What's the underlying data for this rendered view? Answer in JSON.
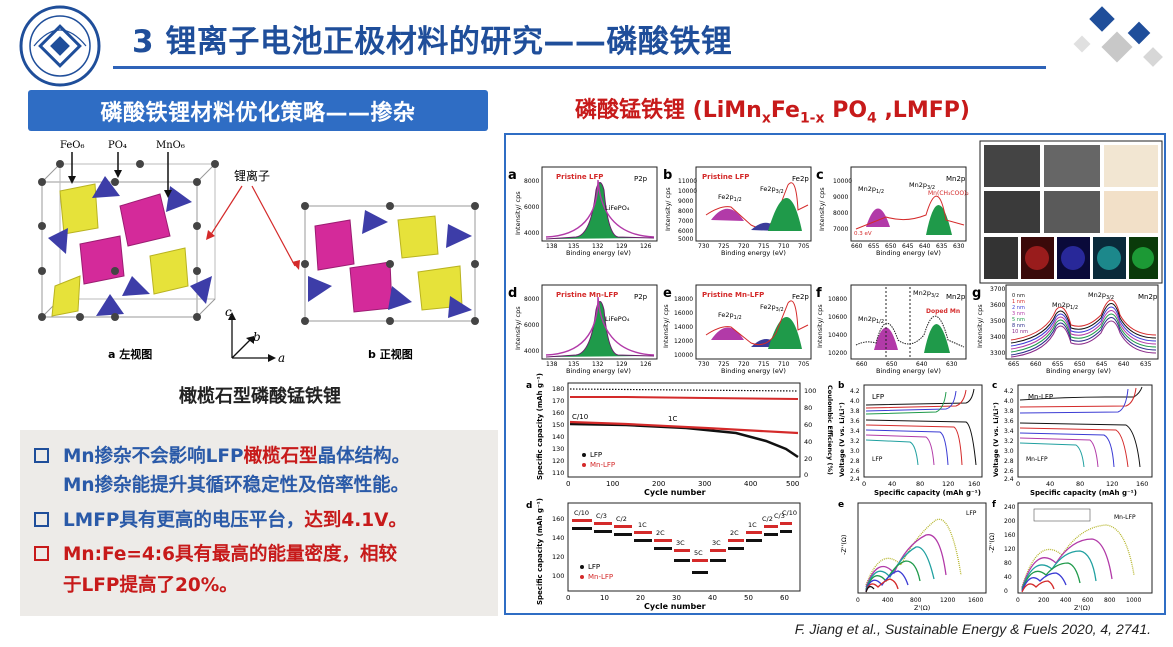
{
  "header": {
    "title": "3 锂离子电池正极材料的研究——磷酸铁锂",
    "logo_text": "CENTRAL SOUTH UNIVERSITY"
  },
  "left": {
    "banner": "磷酸铁锂材料优化策略——掺杂",
    "crystal": {
      "labels": [
        "FeO₆",
        "PO₄",
        "MnO₆"
      ],
      "li_label": "锂离子",
      "view_a": "a 左视图",
      "view_b": "b 正视图",
      "axes": [
        "c",
        "b",
        "a"
      ]
    },
    "caption": "橄榄石型磷酸锰铁锂",
    "bullets": [
      {
        "prefix": "Mn掺杂不会影响LFP",
        "highlight": "橄榄石型",
        "suffix": "晶体结构。"
      },
      {
        "text": "Mn掺杂能提升其循环稳定性及倍率性能。"
      },
      {
        "prefix": "LMFP具有更高的电压平台，",
        "suffix": "达到4.1V。"
      },
      {
        "text": "Mn:Fe=4:6具有最高的能量密度，相较"
      },
      {
        "text": "于LFP提高了20%。"
      }
    ]
  },
  "right": {
    "title_pre": "磷酸锰铁锂 (LiMn",
    "title_x": "x",
    "title_mid": "Fe",
    "title_1x": "1-x",
    "title_post": " PO",
    "title_4": "4",
    "title_end": " ,LMFP)",
    "panels_top": [
      {
        "letter": "a",
        "label": "Pristine LFP",
        "right": "P2p",
        "peak": "LiFePO₄",
        "xlabel": "Binding energy (eV)",
        "ylabel": "Intensity/ cps",
        "xticks": [
          "138",
          "135",
          "132",
          "129",
          "126"
        ],
        "yticks": [
          "8000",
          "6000",
          "4000"
        ]
      },
      {
        "letter": "b",
        "label": "Pristine LFP",
        "right": "Fe2p",
        "peak": "",
        "xlabel": "Binding energy (eV)",
        "ylabel": "Intensity/ cps",
        "xticks": [
          "730",
          "725",
          "720",
          "715",
          "710",
          "705"
        ],
        "yticks": [
          "11000",
          "10000",
          "9000",
          "8000",
          "7000",
          "6000",
          "5000"
        ]
      },
      {
        "letter": "c",
        "label": "",
        "right": "Mn2p",
        "peak": "Mn(CH₃COO)₂",
        "xlabel": "Binding energy (eV)",
        "ylabel": "Intensity/ cps",
        "xticks": [
          "660",
          "655",
          "650",
          "645",
          "640",
          "635",
          "630"
        ],
        "yticks": [
          "10000",
          "9000",
          "8000",
          "7000"
        ]
      },
      {
        "letter": "d",
        "label": "Pristine Mn-LFP",
        "right": "P2p",
        "peak": "LiFePO₄",
        "xlabel": "Binding energy (eV)",
        "ylabel": "Intensity/ cps",
        "xticks": [
          "138",
          "135",
          "132",
          "129",
          "126"
        ],
        "yticks": [
          "8000",
          "6000",
          "4000"
        ]
      },
      {
        "letter": "e",
        "label": "Pristine Mn-LFP",
        "right": "Fe2p",
        "peak": "",
        "xlabel": "Binding energy (eV)",
        "ylabel": "Intensity/ cps",
        "xticks": [
          "730",
          "725",
          "720",
          "715",
          "710",
          "705"
        ],
        "yticks": [
          "18000",
          "16000",
          "14000",
          "12000",
          "10000"
        ]
      },
      {
        "letter": "f",
        "label": "",
        "right": "Mn2p",
        "peak": "Doped Mn",
        "xlabel": "Binding energy (eV)",
        "ylabel": "Intensity/ cps",
        "xticks": [
          "660",
          "650",
          "640",
          "630"
        ],
        "yticks": [
          "10800",
          "10600",
          "10400",
          "10200"
        ]
      },
      {
        "letter": "g",
        "label": "",
        "right": "Mn2p",
        "peak": "",
        "xlabel": "Binding energy (eV)",
        "ylabel": "Intensity/ cps",
        "xticks": [
          "665",
          "660",
          "655",
          "650",
          "645",
          "640",
          "635"
        ],
        "yticks": [
          "3700",
          "3600",
          "3500",
          "3400",
          "3300"
        ]
      }
    ],
    "legend_g": [
      "0 nm",
      "1 nm",
      "2 nm",
      "3 nm",
      "5 nm",
      "8 nm",
      "10 nm"
    ],
    "cycle": {
      "letter": "a",
      "xlabel": "Cycle number",
      "ylabel": "Specific capacity (mAh g⁻¹)",
      "ylabel2": "Coulombic Efficiency (%)",
      "xticks": [
        "0",
        "100",
        "200",
        "300",
        "400",
        "500"
      ],
      "yticks": [
        "180",
        "170",
        "160",
        "150",
        "140",
        "130",
        "120",
        "110"
      ],
      "y2ticks": [
        "100",
        "80",
        "60",
        "40",
        "20",
        "0"
      ],
      "tag1": "C/10",
      "tag2": "1C",
      "legend": [
        "LFP",
        "Mn-LFP"
      ]
    },
    "rate": {
      "letter": "d",
      "xlabel": "Cycle number",
      "ylabel": "Specific capacity (mAh g⁻¹)",
      "xticks": [
        "0",
        "10",
        "20",
        "30",
        "40",
        "50",
        "60"
      ],
      "yticks": [
        "160",
        "140",
        "120",
        "100"
      ],
      "tags": [
        "C/10",
        "C/3",
        "C/2",
        "1C",
        "2C",
        "3C",
        "5C",
        "3C",
        "2C",
        "1C",
        "C/2",
        "C/3",
        "C/10"
      ],
      "legend": [
        "LFP",
        "Mn-LFP"
      ]
    },
    "voltage_b": {
      "letter": "b",
      "label": "LFP",
      "inner": "LFP",
      "xlabel": "Specific capacity (mAh g⁻¹)",
      "ylabel": "Voltage (V vs. Li/Li⁺)",
      "xticks": [
        "0",
        "40",
        "80",
        "120",
        "160"
      ],
      "yticks": [
        "4.2",
        "4.0",
        "3.8",
        "3.6",
        "3.4",
        "3.2",
        "3.0",
        "2.8",
        "2.6",
        "2.4"
      ]
    },
    "voltage_c": {
      "letter": "c",
      "label": "Mn-LFP",
      "inner": "Mn-LFP",
      "xlabel": "Specific capacity (mAh g⁻¹)",
      "ylabel": "Voltage (V vs. Li/Li⁺)",
      "xticks": [
        "0",
        "40",
        "80",
        "120",
        "160"
      ],
      "yticks": [
        "4.2",
        "4.0",
        "3.8",
        "3.6",
        "3.4",
        "3.2",
        "3.0",
        "2.8",
        "2.6",
        "2.4"
      ]
    },
    "eis_e": {
      "letter": "e",
      "label": "LFP",
      "xlabel": "Z'(Ω)",
      "ylabel": "-Z''(Ω)",
      "xticks": [
        "0",
        "400",
        "800",
        "1200",
        "1600"
      ]
    },
    "eis_f": {
      "letter": "f",
      "label": "Mn-LFP",
      "xlabel": "Z'(Ω)",
      "ylabel": "-Z''(Ω)",
      "xticks": [
        "0",
        "200",
        "400",
        "600",
        "800",
        "1000"
      ],
      "yticks": [
        "240",
        "200",
        "160",
        "120",
        "80",
        "40",
        "0"
      ]
    },
    "colors": {
      "pink": "#b23aa8",
      "green": "#1f9a4a",
      "navy": "#3b3b9a",
      "red": "#d42a2a",
      "black": "#111111"
    }
  },
  "citation": "F. Jiang et al., Sustainable Energy & Fuels 2020, 4, 2741."
}
